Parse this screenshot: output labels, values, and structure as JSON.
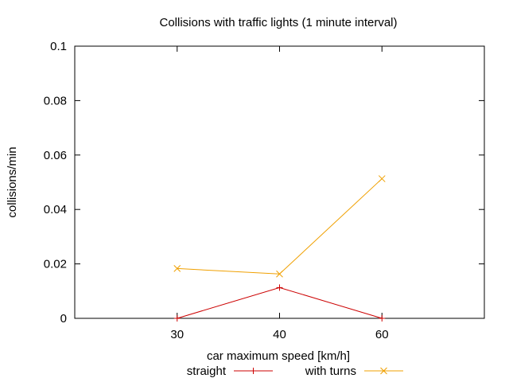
{
  "chart_data": {
    "type": "line",
    "title": "Collisions with traffic lights (1 minute interval)",
    "xlabel": "car maximum speed [km/h]",
    "ylabel": "collisions/min",
    "categories": [
      "30",
      "40",
      "60"
    ],
    "x_range": [
      0,
      4
    ],
    "category_positions": [
      1,
      2,
      3
    ],
    "ylim": [
      0,
      0.1
    ],
    "yticks": [
      0,
      0.02,
      0.04,
      0.06,
      0.08,
      0.1
    ],
    "ytick_labels": [
      "0",
      "0.02",
      "0.04",
      "0.06",
      "0.08",
      "0.1"
    ],
    "grid": false,
    "legend_position": "bottom-center",
    "series": [
      {
        "name": "straight",
        "color": "#cc0000",
        "marker": "plus",
        "values": [
          0,
          0.0113,
          0
        ]
      },
      {
        "name": "with turns",
        "color": "#f0a000",
        "marker": "cross",
        "values": [
          0.0183,
          0.0163,
          0.0513
        ]
      }
    ]
  }
}
